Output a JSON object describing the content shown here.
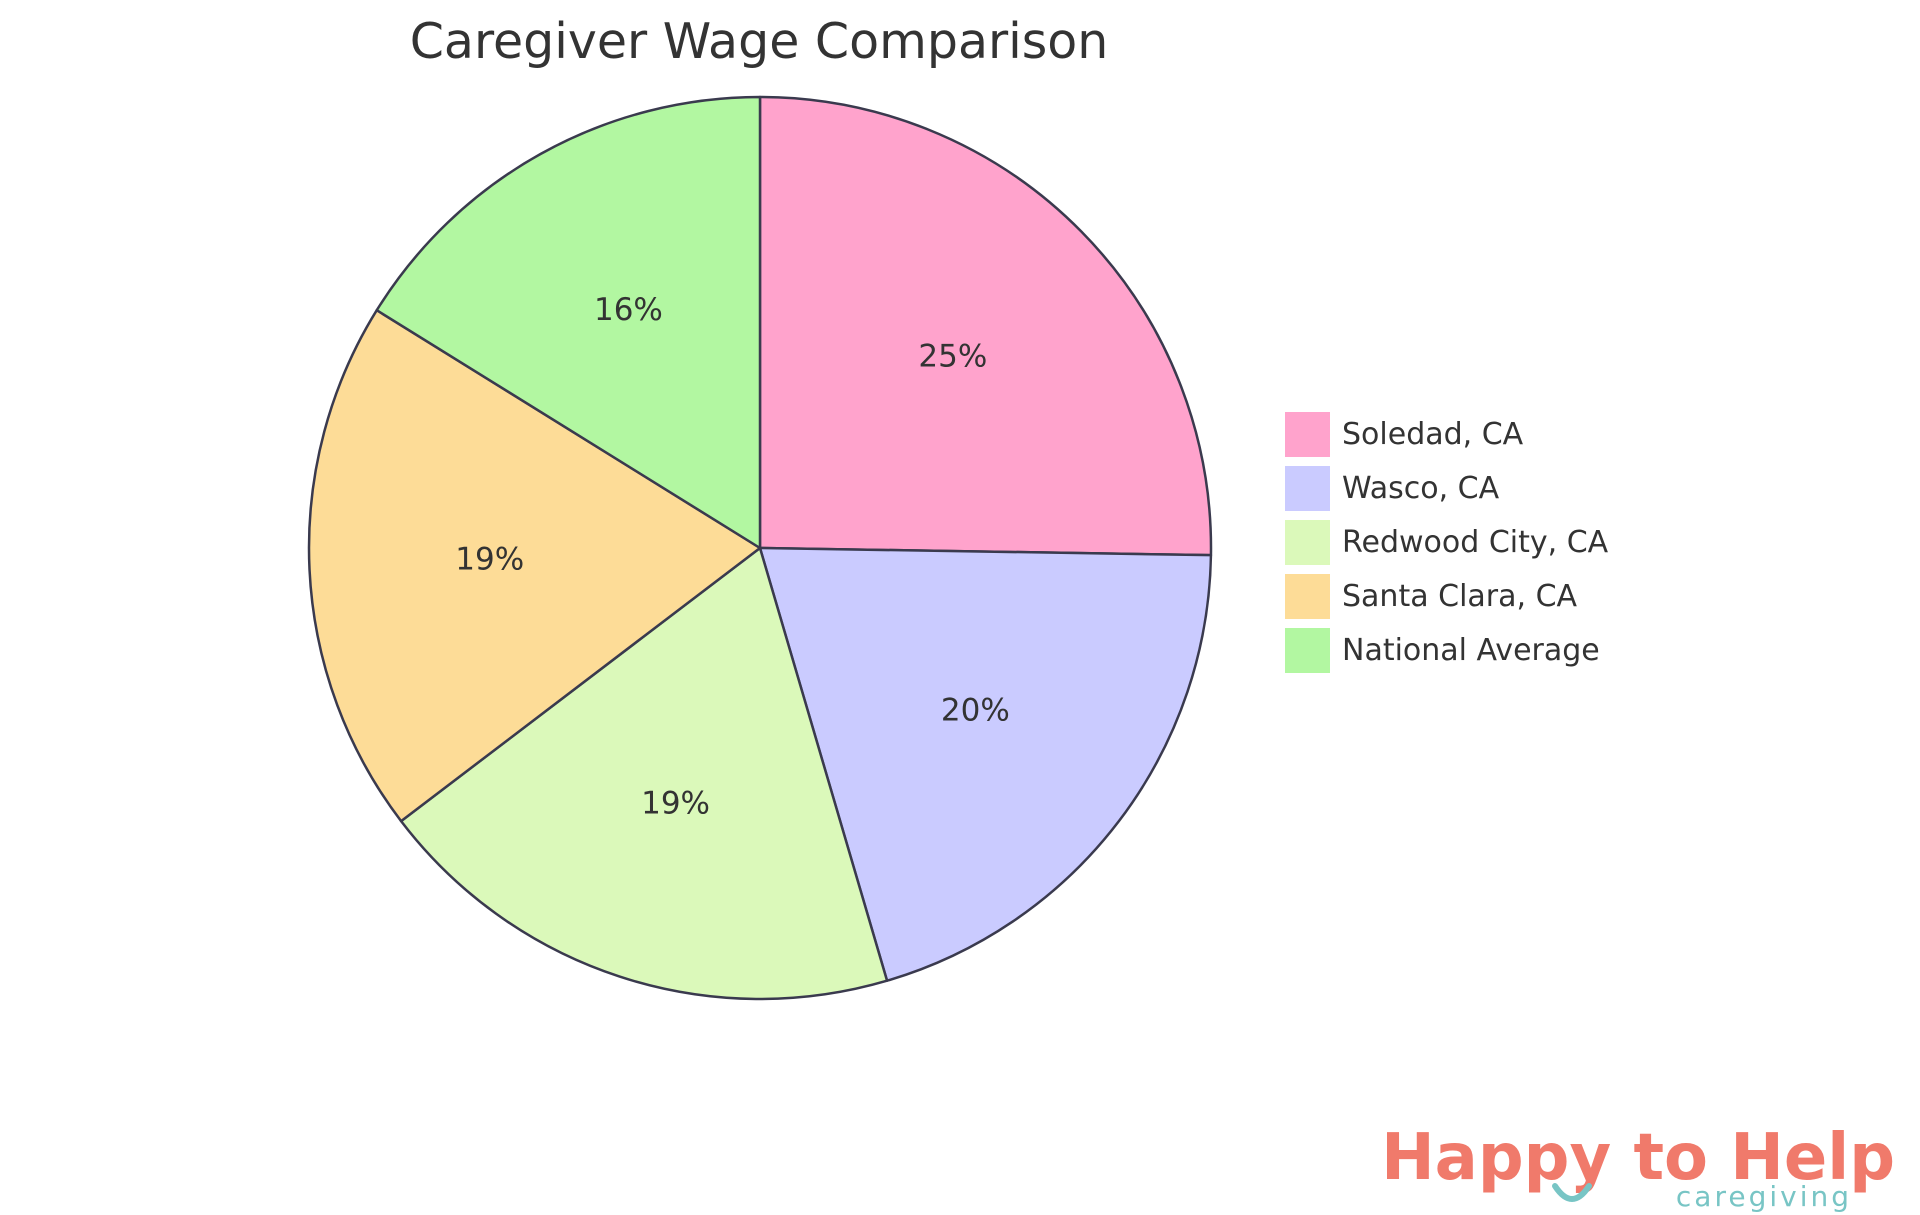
{
  "chart_data": {
    "type": "pie",
    "title": "Caregiver Wage Comparison",
    "labels": [
      "Soledad, CA",
      "Wasco, CA",
      "Redwood City, CA",
      "Santa Clara, CA",
      "National Average"
    ],
    "values": [
      25,
      20,
      19,
      19,
      16
    ],
    "percent_labels": [
      "25%",
      "20%",
      "19%",
      "19%",
      "16%"
    ],
    "colors": [
      "#FFA3CC",
      "#CACBFF",
      "#DBF9BA",
      "#FDDC97",
      "#B2F7A1"
    ],
    "stroke_color": "#3A3A4E",
    "legend_position": "right"
  },
  "logo": {
    "brand": "Happy to Help",
    "tagline": "caregiving",
    "brand_color": "#F07A6B",
    "tagline_color": "#78C5C5"
  }
}
